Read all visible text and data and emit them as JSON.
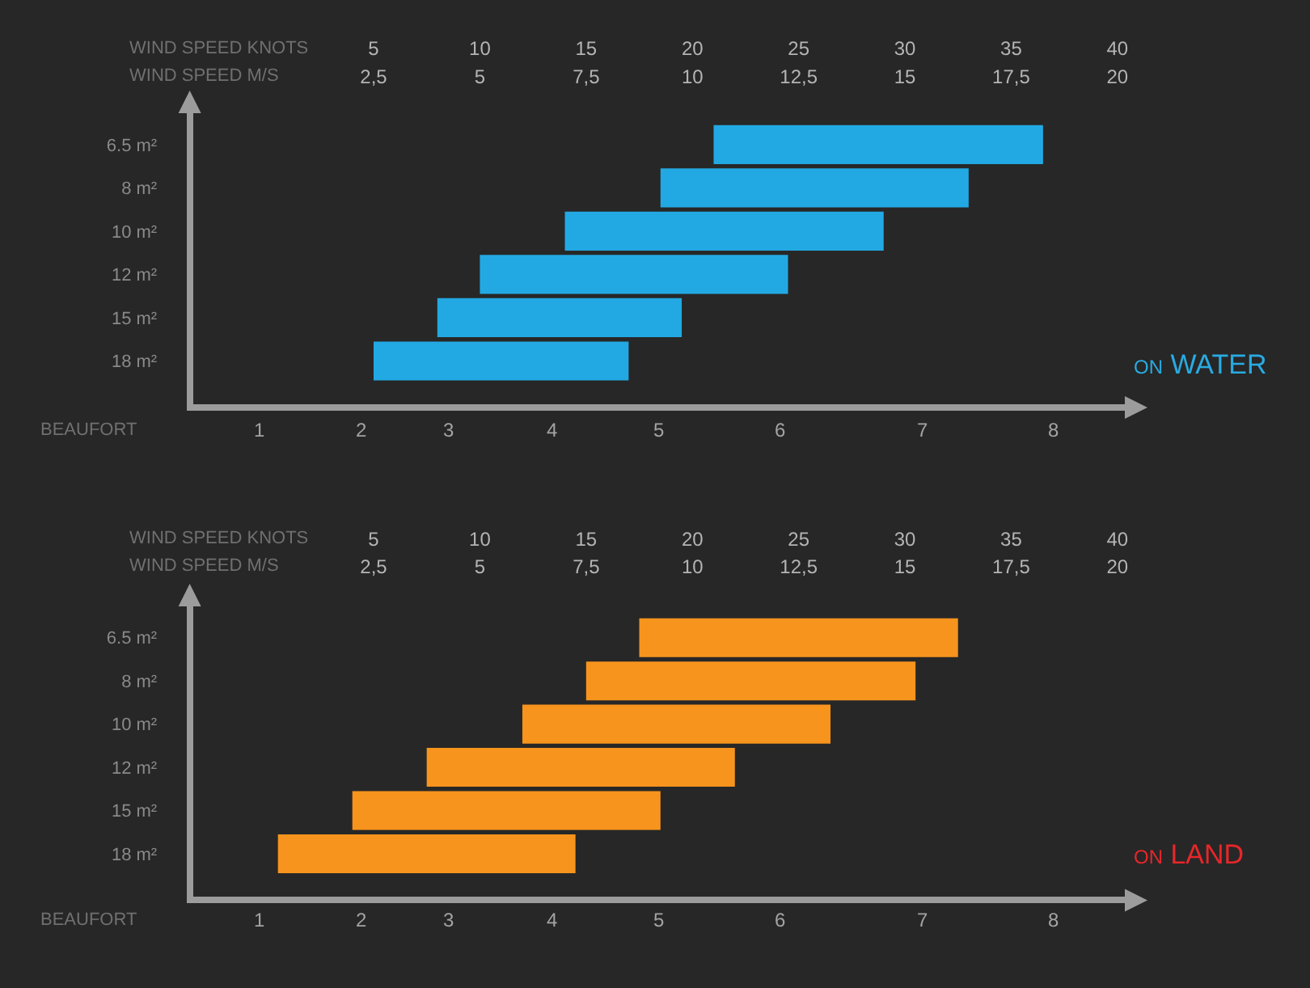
{
  "chart_data": [
    {
      "type": "bar",
      "orientation": "horizontal",
      "title": "ON WATER",
      "xlabel": "WIND SPEED KNOTS",
      "x2label": "WIND SPEED M/S",
      "categories": [
        "6.5 m²",
        "8 m²",
        "10 m²",
        "12 m²",
        "15 m²",
        "18 m²"
      ],
      "base": [
        21,
        18.5,
        14,
        10,
        8,
        5
      ],
      "values": [
        15.5,
        14.5,
        15,
        14.5,
        11.5,
        12
      ],
      "color": "#22a9e3",
      "xlim": [
        -3.5,
        40.5
      ],
      "xticks": [
        5,
        10,
        15,
        20,
        25,
        30,
        35,
        40
      ],
      "x2lim": [
        -1.75,
        20.25
      ],
      "x2ticks": [
        {
          "value": 2.5,
          "label": "2,5"
        },
        5,
        {
          "value": 7.5,
          "label": "7,5"
        },
        10,
        {
          "value": 12.5,
          "label": "12,5"
        },
        15,
        {
          "value": 17.5,
          "label": "17,5"
        },
        20
      ],
      "annotations": [
        "BEAUFORT",
        "1",
        "2",
        "3",
        "4",
        "5",
        "6",
        "7",
        "8"
      ]
    },
    {
      "type": "bar",
      "orientation": "horizontal",
      "title": "ON LAND",
      "xlabel": "WIND SPEED KNOTS",
      "x2label": "WIND SPEED M/S",
      "categories": [
        "6.5 m²",
        "8 m²",
        "10 m²",
        "12 m²",
        "15 m²",
        "18 m²"
      ],
      "base": [
        17.5,
        15,
        12,
        7.5,
        4,
        0.5
      ],
      "values": [
        15,
        15.5,
        14.5,
        14.5,
        14.5,
        14
      ],
      "color": "#f7941d",
      "xlim": [
        -3.5,
        40.5
      ],
      "xticks": [
        5,
        10,
        15,
        20,
        25,
        30,
        35,
        40
      ],
      "x2lim": [
        -1.75,
        20.25
      ],
      "x2ticks": [
        {
          "value": 2.5,
          "label": "2,5"
        },
        5,
        {
          "value": 7.5,
          "label": "7,5"
        },
        10,
        {
          "value": 12.5,
          "label": "12,5"
        },
        15,
        {
          "value": 17.5,
          "label": "17,5"
        },
        20
      ],
      "annotations": [
        "BEAUFORT",
        "1",
        "2",
        "3",
        "4",
        "5",
        "6",
        "7",
        "8"
      ]
    }
  ]
}
